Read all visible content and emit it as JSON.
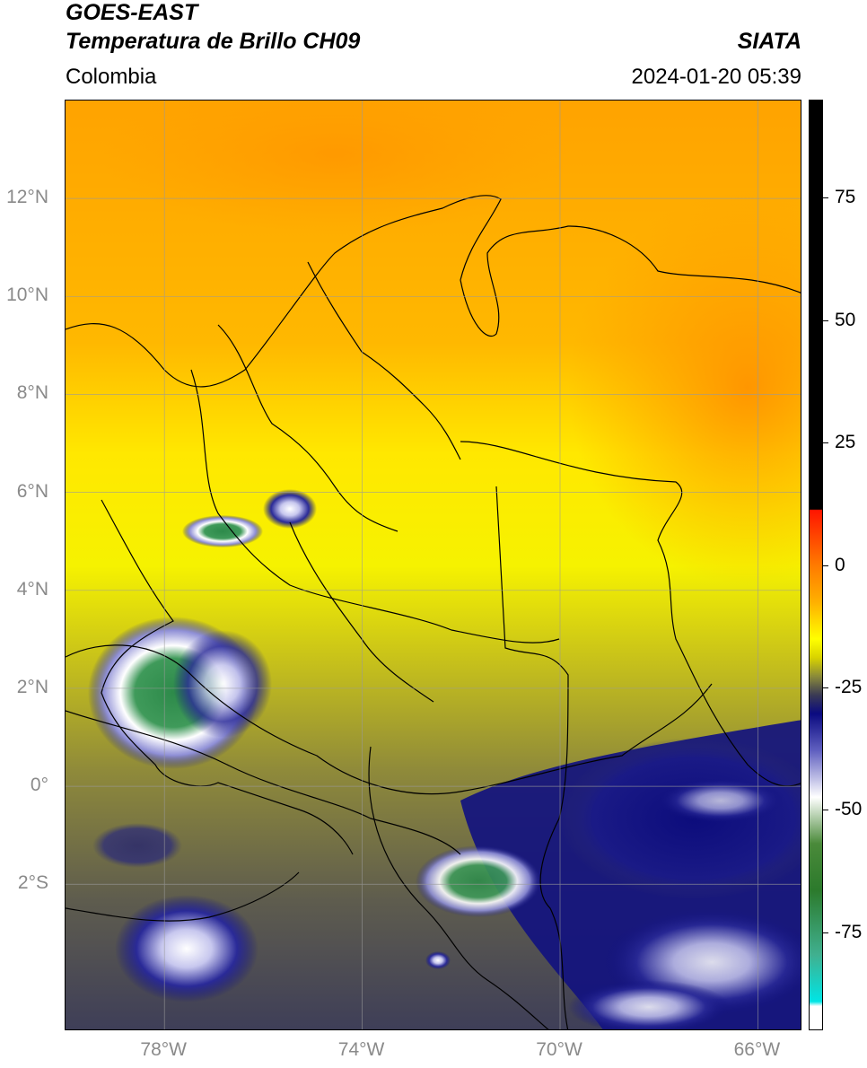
{
  "header": {
    "line1": "GOES-EAST",
    "line2": "Temperatura de Brillo CH09",
    "region": "Colombia",
    "brand": "SIATA",
    "datetime": "2024-01-20 05:39"
  },
  "map": {
    "latitude_labels": [
      "12°N",
      "10°N",
      "8°N",
      "6°N",
      "4°N",
      "2°N",
      "0°",
      "2°S"
    ],
    "longitude_labels": [
      "78°W",
      "74°W",
      "70°W",
      "66°W"
    ],
    "latitude_values": [
      12,
      10,
      8,
      6,
      4,
      2,
      0,
      -2
    ],
    "longitude_values": [
      -78,
      -74,
      -70,
      -66
    ],
    "extent": {
      "lon_min": -80,
      "lon_max": -65.1,
      "lat_min": -5,
      "lat_max": 14
    },
    "grid": true
  },
  "colorbar": {
    "tick_labels": [
      "75",
      "50",
      "25",
      "0",
      "-25",
      "-50",
      "-75"
    ],
    "tick_values": [
      75,
      50,
      25,
      0,
      -25,
      -50,
      -75
    ],
    "range": [
      -95,
      95
    ],
    "colors": {
      "black": "#000000",
      "red": "#ff1500",
      "orange": "#ff9a00",
      "yellow": "#ffff00",
      "olive": "#8a8a3a",
      "navy": "#0a0a80",
      "white": "#ffffff",
      "green": "#2c7a2c",
      "cyan": "#00e5e5"
    }
  }
}
